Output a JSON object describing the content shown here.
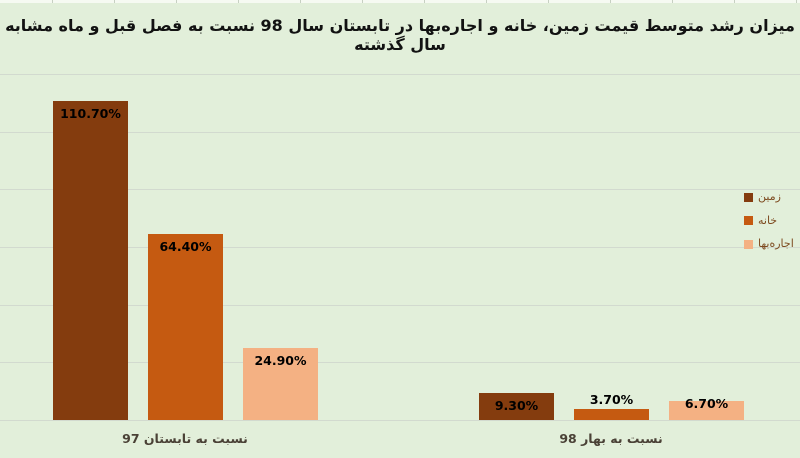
{
  "title": "میزان رشد متوسط قیمت زمین، خانه و اجاره‌بها در تابستان سال 98 نسبت به فصل قبل و ماه مشابه سال گذشته",
  "chart_data": {
    "type": "bar",
    "title": "میزان رشد متوسط قیمت زمین، خانه و اجاره‌بها در تابستان سال 98 نسبت به فصل قبل و ماه مشابه سال گذشته",
    "categories": [
      "نسبت به تابستان 97",
      "نسبت به بهار 98"
    ],
    "series": [
      {
        "name": "زمین",
        "color": "#843c0e",
        "values": [
          110.7,
          9.3
        ],
        "data_labels": [
          "110.70%",
          "9.30%"
        ]
      },
      {
        "name": "خانه",
        "color": "#c55a11",
        "values": [
          64.4,
          3.7
        ],
        "data_labels": [
          "64.40%",
          "3.70%"
        ]
      },
      {
        "name": "اجاره‌بها",
        "color": "#f4b183",
        "values": [
          24.9,
          6.7
        ],
        "data_labels": [
          "24.90%",
          "6.70%"
        ]
      }
    ],
    "xlabel": "",
    "ylabel": "",
    "ylim": [
      0,
      120
    ],
    "gridline_step": 20,
    "grid": true,
    "legend_position": "right",
    "value_suffix": "%"
  },
  "colors": {
    "background": "#e2efda",
    "gridline": "#d2dacf",
    "title_text": "#121212",
    "value_label_text": "#000000",
    "category_label_text": "#4a4136",
    "legend_text": "#7d4a1f"
  }
}
